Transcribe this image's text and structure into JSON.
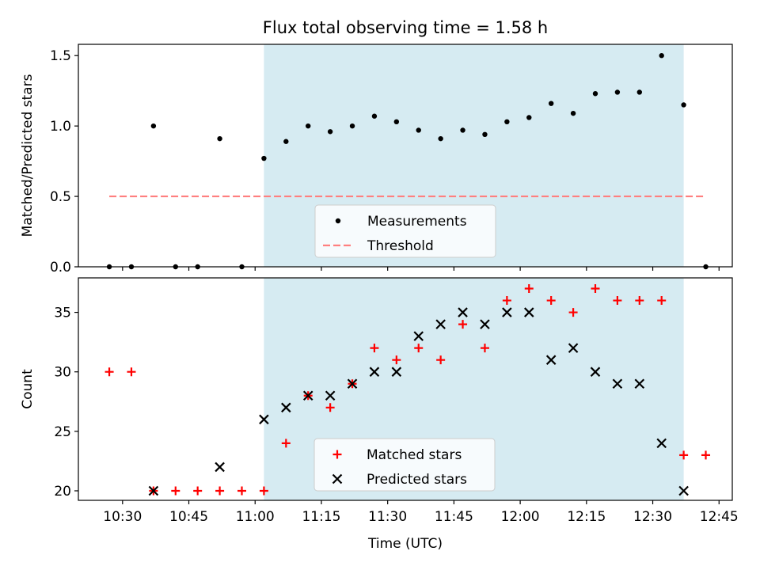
{
  "chart_data": {
    "type": "scatter",
    "title": "Flux total observing time = 1.58 h",
    "xlabel": "Time (UTC)",
    "x_tick_labels": [
      "10:30",
      "10:45",
      "11:00",
      "11:15",
      "11:30",
      "11:45",
      "12:00",
      "12:15",
      "12:30",
      "12:45"
    ],
    "x_tick_values": [
      "10:30",
      "10:45",
      "11:00",
      "11:15",
      "11:30",
      "11:45",
      "12:00",
      "12:15",
      "12:30",
      "12:45"
    ],
    "xlim": [
      "10:20",
      "12:48"
    ],
    "highlight_span": [
      "11:02",
      "12:37"
    ],
    "highlight_color": "#add8e6",
    "panels": [
      {
        "id": "ratio",
        "ylabel": "Matched/Predicted stars",
        "ylim": [
          0,
          1.58
        ],
        "y_ticks": [
          0.0,
          0.5,
          1.0,
          1.5
        ],
        "y_tick_labels": [
          "0.0",
          "0.5",
          "1.0",
          "1.5"
        ],
        "legend_position": "lower-center",
        "series": [
          {
            "name": "Measurements",
            "marker": "dot",
            "color": "#000000",
            "points": [
              [
                "10:27",
                0.0
              ],
              [
                "10:32",
                0.0
              ],
              [
                "10:37",
                1.0
              ],
              [
                "10:42",
                0.0
              ],
              [
                "10:47",
                0.0
              ],
              [
                "10:52",
                0.91
              ],
              [
                "10:57",
                0.0
              ],
              [
                "11:02",
                0.77
              ],
              [
                "11:07",
                0.89
              ],
              [
                "11:12",
                1.0
              ],
              [
                "11:17",
                0.96
              ],
              [
                "11:22",
                1.0
              ],
              [
                "11:27",
                1.07
              ],
              [
                "11:32",
                1.03
              ],
              [
                "11:37",
                0.97
              ],
              [
                "11:42",
                0.91
              ],
              [
                "11:47",
                0.97
              ],
              [
                "11:52",
                0.94
              ],
              [
                "11:57",
                1.03
              ],
              [
                "12:02",
                1.06
              ],
              [
                "12:07",
                1.16
              ],
              [
                "12:12",
                1.09
              ],
              [
                "12:17",
                1.23
              ],
              [
                "12:22",
                1.24
              ],
              [
                "12:27",
                1.24
              ],
              [
                "12:32",
                1.5
              ],
              [
                "12:37",
                1.15
              ],
              [
                "12:42",
                0.0
              ]
            ]
          },
          {
            "name": "Threshold",
            "line": "dashed",
            "color": "#ff7f7f",
            "x": [
              "10:27",
              "12:42"
            ],
            "y": [
              0.5,
              0.5
            ]
          }
        ]
      },
      {
        "id": "counts",
        "ylabel": "Count",
        "ylim": [
          19.2,
          37.9
        ],
        "y_ticks": [
          20,
          25,
          30,
          35
        ],
        "y_tick_labels": [
          "20",
          "25",
          "30",
          "35"
        ],
        "legend_position": "lower-center",
        "series": [
          {
            "name": "Matched stars",
            "marker": "plus",
            "color": "#ff0000",
            "points": [
              [
                "10:27",
                30
              ],
              [
                "10:32",
                30
              ],
              [
                "10:37",
                20
              ],
              [
                "10:42",
                20
              ],
              [
                "10:47",
                20
              ],
              [
                "10:52",
                20
              ],
              [
                "10:57",
                20
              ],
              [
                "11:02",
                20
              ],
              [
                "11:07",
                24
              ],
              [
                "11:12",
                28
              ],
              [
                "11:17",
                27
              ],
              [
                "11:22",
                29
              ],
              [
                "11:27",
                32
              ],
              [
                "11:32",
                31
              ],
              [
                "11:37",
                32
              ],
              [
                "11:42",
                31
              ],
              [
                "11:47",
                34
              ],
              [
                "11:52",
                32
              ],
              [
                "11:57",
                36
              ],
              [
                "12:02",
                37
              ],
              [
                "12:07",
                36
              ],
              [
                "12:12",
                35
              ],
              [
                "12:17",
                37
              ],
              [
                "12:22",
                36
              ],
              [
                "12:27",
                36
              ],
              [
                "12:32",
                36
              ],
              [
                "12:37",
                23
              ],
              [
                "12:42",
                23
              ]
            ]
          },
          {
            "name": "Predicted stars",
            "marker": "x",
            "color": "#000000",
            "points": [
              [
                "10:37",
                20
              ],
              [
                "10:52",
                22
              ],
              [
                "11:02",
                26
              ],
              [
                "11:07",
                27
              ],
              [
                "11:12",
                28
              ],
              [
                "11:17",
                28
              ],
              [
                "11:22",
                29
              ],
              [
                "11:27",
                30
              ],
              [
                "11:32",
                30
              ],
              [
                "11:37",
                33
              ],
              [
                "11:42",
                34
              ],
              [
                "11:47",
                35
              ],
              [
                "11:52",
                34
              ],
              [
                "11:57",
                35
              ],
              [
                "12:02",
                35
              ],
              [
                "12:07",
                31
              ],
              [
                "12:12",
                32
              ],
              [
                "12:17",
                30
              ],
              [
                "12:22",
                29
              ],
              [
                "12:27",
                29
              ],
              [
                "12:32",
                24
              ],
              [
                "12:37",
                20
              ]
            ]
          }
        ]
      }
    ]
  }
}
